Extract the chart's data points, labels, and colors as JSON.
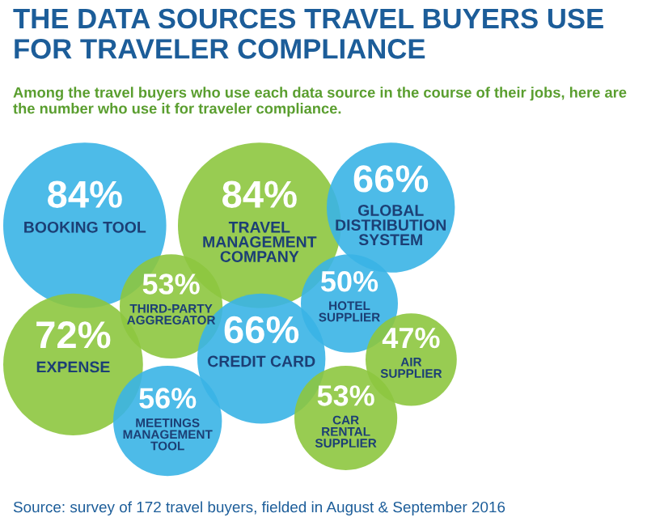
{
  "chart_data": {
    "type": "other",
    "title": "THE DATA SOURCES TRAVEL BUYERS USE FOR TRAVELER COMPLIANCE",
    "subtitle": "Among the travel buyers who use each data source in the course of their jobs, here are the number who use it for traveler compliance.",
    "categories": [
      "BOOKING TOOL",
      "EXPENSE",
      "MEETINGS MANAGEMENT TOOL",
      "THIRD-PARTY AGGREGATOR",
      "TRAVEL MANAGEMENT COMPANY",
      "CREDIT CARD",
      "CAR RENTAL SUPPLIER",
      "HOTEL SUPPLIER",
      "GLOBAL DISTRIBUTION SYSTEM",
      "AIR SUPPLIER"
    ],
    "values": [
      84,
      72,
      56,
      53,
      84,
      66,
      53,
      50,
      66,
      47
    ],
    "value_labels": [
      "84%",
      "72%",
      "56%",
      "53%",
      "84%",
      "66%",
      "53%",
      "50%",
      "66%",
      "47%"
    ],
    "colors": [
      "#3ab4e6",
      "#8dc63f",
      "#3ab4e6",
      "#8dc63f",
      "#8dc63f",
      "#3ab4e6",
      "#8dc63f",
      "#3ab4e6",
      "#3ab4e6",
      "#8dc63f"
    ],
    "annotations": [
      "Source: survey of 172 travel buyers, fielded in August & September 2016"
    ]
  }
}
